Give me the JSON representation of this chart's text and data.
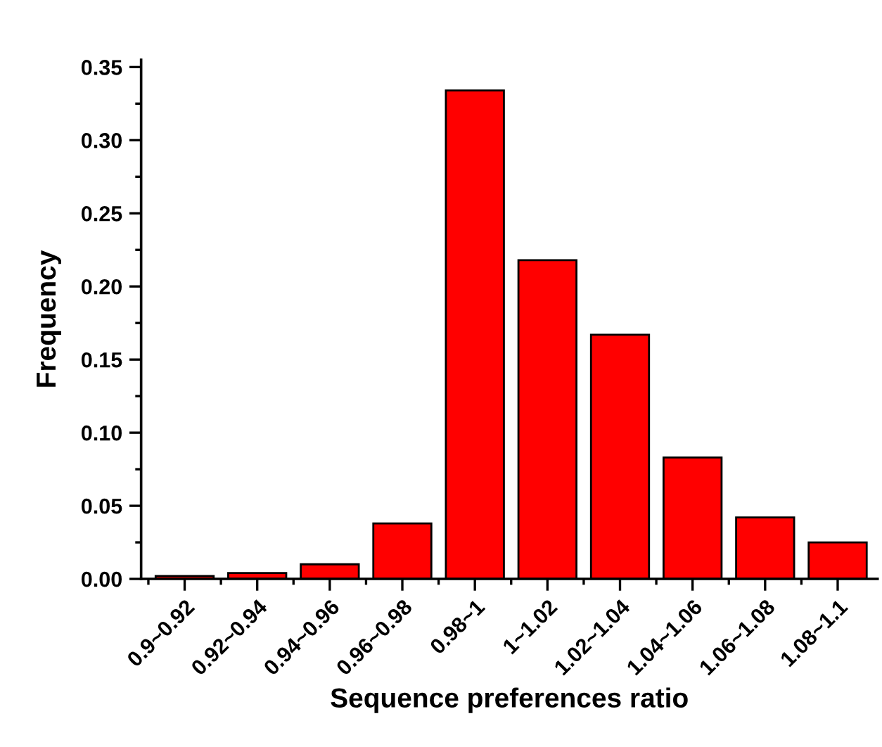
{
  "chart_data": {
    "type": "bar",
    "xlabel": "Sequence preferences ratio",
    "ylabel": "Frequency",
    "categories": [
      "0.9~0.92",
      "0.92~0.94",
      "0.94~0.96",
      "0.96~0.98",
      "0.98~1",
      "1~1.02",
      "1.02~1.04",
      "1.04~1.06",
      "1.06~1.08",
      "1.08~1.1"
    ],
    "values": [
      0.002,
      0.004,
      0.01,
      0.038,
      0.334,
      0.218,
      0.167,
      0.083,
      0.042,
      0.025
    ],
    "color": "#ff0000",
    "ylim": [
      0,
      0.355
    ],
    "yticks": [
      {
        "value": 0,
        "label": "0.00"
      },
      {
        "value": 0.05,
        "label": "0.05"
      },
      {
        "value": 0.1,
        "label": "0.10"
      },
      {
        "value": 0.15,
        "label": "0.15"
      },
      {
        "value": 0.2,
        "label": "0.20"
      },
      {
        "value": 0.25,
        "label": "0.25"
      },
      {
        "value": 0.3,
        "label": "0.30"
      },
      {
        "value": 0.35,
        "label": "0.35"
      }
    ],
    "grid": false
  }
}
